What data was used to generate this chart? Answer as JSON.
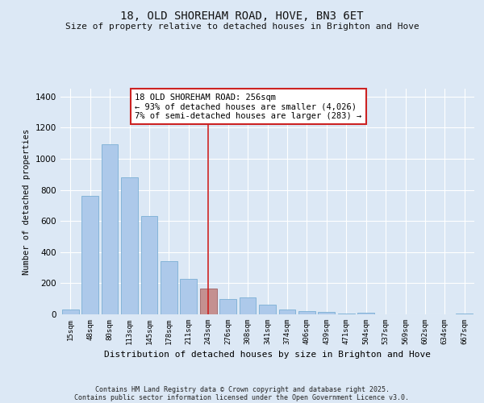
{
  "title_line1": "18, OLD SHOREHAM ROAD, HOVE, BN3 6ET",
  "title_line2": "Size of property relative to detached houses in Brighton and Hove",
  "xlabel": "Distribution of detached houses by size in Brighton and Hove",
  "ylabel": "Number of detached properties",
  "categories": [
    "15sqm",
    "48sqm",
    "80sqm",
    "113sqm",
    "145sqm",
    "178sqm",
    "211sqm",
    "243sqm",
    "276sqm",
    "308sqm",
    "341sqm",
    "374sqm",
    "406sqm",
    "439sqm",
    "471sqm",
    "504sqm",
    "537sqm",
    "569sqm",
    "602sqm",
    "634sqm",
    "667sqm"
  ],
  "values": [
    30,
    760,
    1095,
    880,
    630,
    340,
    230,
    165,
    100,
    110,
    60,
    30,
    20,
    15,
    5,
    8,
    2,
    1,
    1,
    1,
    4
  ],
  "bar_color": "#adc9ea",
  "bar_edge_color": "#7aafd4",
  "highlight_bar_index": 7,
  "highlight_bar_color": "#c49090",
  "highlight_bar_edge_color": "#a06060",
  "vline_color": "#cc2222",
  "annotation_box_text": "18 OLD SHOREHAM ROAD: 256sqm\n← 93% of detached houses are smaller (4,026)\n7% of semi-detached houses are larger (283) →",
  "ylim": [
    0,
    1450
  ],
  "yticks": [
    0,
    200,
    400,
    600,
    800,
    1000,
    1200,
    1400
  ],
  "bg_color": "#dce8f5",
  "plot_bg_color": "#dce8f5",
  "footer_line1": "Contains HM Land Registry data © Crown copyright and database right 2025.",
  "footer_line2": "Contains public sector information licensed under the Open Government Licence v3.0."
}
